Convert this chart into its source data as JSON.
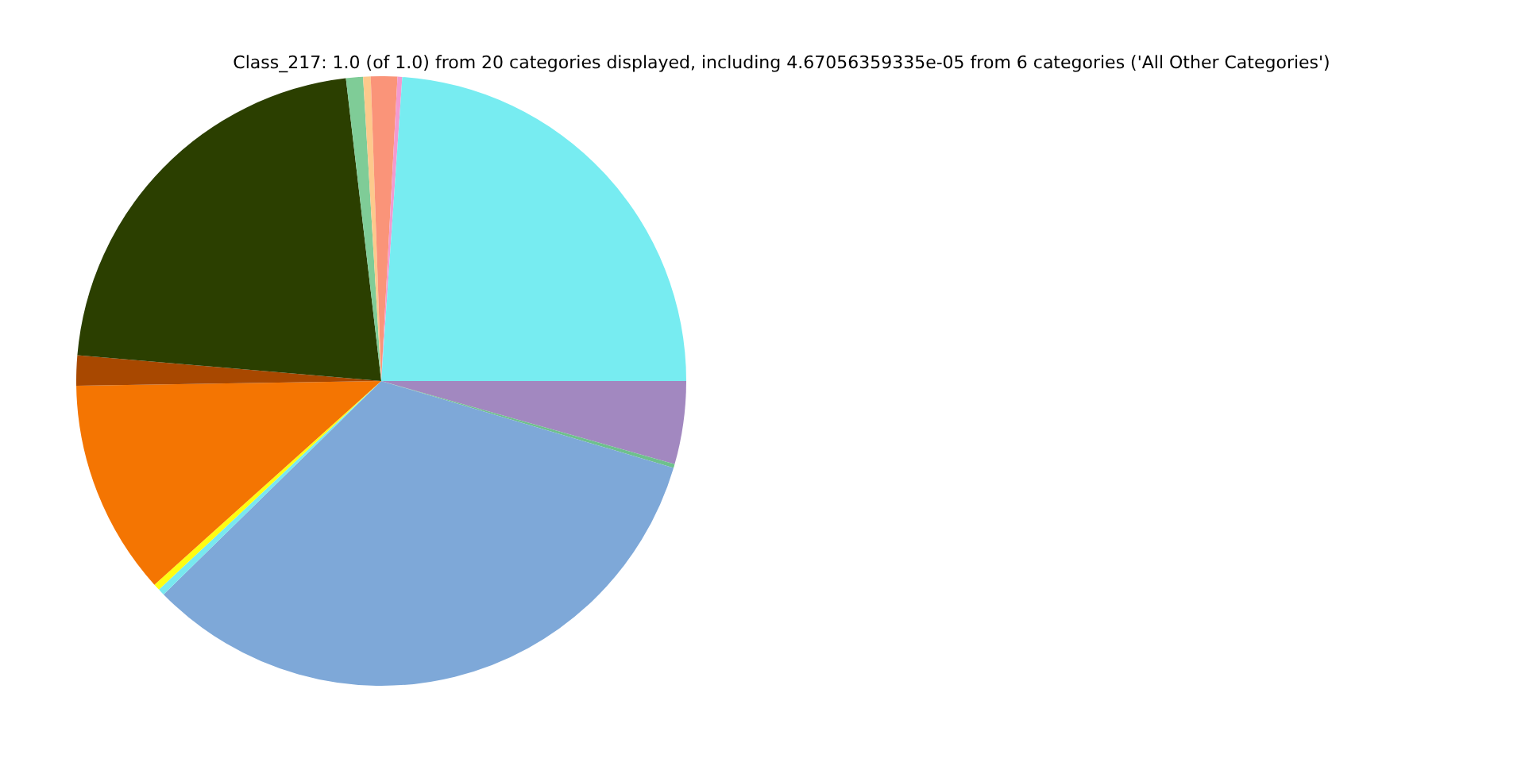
{
  "chart_data": {
    "type": "pie",
    "title": "Class_217: 1.0 (of 1.0) from 20 categories displayed, including 4.67056359335e-05 from 6 categories ('All Other Categories')",
    "categories": [
      null,
      null,
      null,
      null,
      null,
      null,
      null,
      null,
      null,
      null,
      null,
      null,
      null
    ],
    "values": [
      23.9,
      0.25,
      1.4,
      0.4,
      0.9,
      21.8,
      1.6,
      11.4,
      0.35,
      0.35,
      33.05,
      0.2,
      4.4
    ],
    "colors": [
      "#77ecf1",
      "#f29ad0",
      "#fa9479",
      "#fdc98c",
      "#7fcc97",
      "#2b3f00",
      "#a84800",
      "#f47502",
      "#fffd10",
      "#78e8ef",
      "#7ea8d8",
      "#6ec08c",
      "#a288c0"
    ],
    "legend": false
  }
}
